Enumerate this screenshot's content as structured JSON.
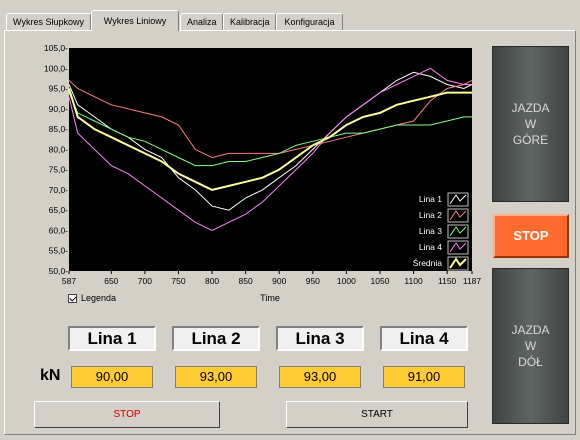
{
  "tabs": [
    "Wykres Słupkowy",
    "Wykres Liniowy",
    "Analiza",
    "Kalibracja",
    "Konfiguracja"
  ],
  "chart_data": {
    "type": "line",
    "xlabel": "Time",
    "ylim": [
      50,
      105
    ],
    "xlim": [
      587,
      1187
    ],
    "y_ticks": [
      "50,0-",
      "55,0-",
      "60,0-",
      "65,0-",
      "70,0-",
      "75,0-",
      "80,0-",
      "85,0-",
      "90,0-",
      "95,0-",
      "100,0-",
      "105,0-"
    ],
    "x_ticks": [
      "587",
      "650",
      "700",
      "750",
      "800",
      "850",
      "900",
      "950",
      "1000",
      "1050",
      "1100",
      "1150",
      "1187"
    ],
    "x_tick_values": [
      587,
      650,
      700,
      750,
      800,
      850,
      900,
      950,
      1000,
      1050,
      1100,
      1150,
      1187
    ],
    "grid": false,
    "legend_placement": "bottom-right",
    "x": [
      587,
      600,
      625,
      650,
      675,
      700,
      725,
      750,
      775,
      800,
      825,
      850,
      875,
      900,
      925,
      950,
      975,
      1000,
      1025,
      1050,
      1075,
      1100,
      1125,
      1150,
      1175,
      1187
    ],
    "series": [
      {
        "name": "Lina 1",
        "color": "#ffffff",
        "values": [
          96,
          91,
          88,
          85,
          83,
          80,
          78,
          73,
          70,
          66,
          65,
          68,
          70,
          73,
          76,
          80,
          84,
          88,
          91,
          94,
          97,
          99,
          98,
          96,
          95,
          96
        ]
      },
      {
        "name": "Lina 2",
        "color": "#ff8080",
        "values": [
          97,
          95,
          93,
          91,
          90,
          89,
          88,
          86,
          80,
          78,
          79,
          79,
          79,
          79,
          80,
          81,
          82,
          83,
          84,
          85,
          86,
          87,
          92,
          95,
          96,
          97
        ]
      },
      {
        "name": "Lina 3",
        "color": "#80ff80",
        "values": [
          94,
          89,
          87,
          85,
          83,
          82,
          80,
          78,
          76,
          76,
          77,
          77,
          78,
          79,
          81,
          82,
          83,
          84,
          84,
          85,
          86,
          86,
          86,
          87,
          88,
          88
        ]
      },
      {
        "name": "Lina 4",
        "color": "#ff80ff",
        "values": [
          93,
          84,
          80,
          76,
          74,
          71,
          68,
          65,
          62,
          60,
          62,
          64,
          67,
          71,
          75,
          79,
          84,
          88,
          91,
          94,
          96,
          98,
          100,
          97,
          96,
          96
        ]
      },
      {
        "name": "Średnia",
        "color": "#ffff99",
        "values": [
          95,
          88,
          85,
          83,
          81,
          79,
          77,
          74,
          72,
          70,
          71,
          72,
          73,
          75,
          78,
          81,
          83,
          86,
          88,
          89,
          91,
          92,
          93,
          94,
          94,
          94
        ]
      }
    ]
  },
  "legend_checkbox": {
    "label": "Legenda",
    "checked": true
  },
  "linas": [
    {
      "label": "Lina 1",
      "value": "90,00"
    },
    {
      "label": "Lina 2",
      "value": "93,00"
    },
    {
      "label": "Lina 3",
      "value": "93,00"
    },
    {
      "label": "Lina 4",
      "value": "91,00"
    }
  ],
  "units_label": "kN",
  "buttons": {
    "stop": "STOP",
    "start": "START"
  },
  "side_buttons": {
    "up": "JAZDA\nW\nGÓRE",
    "stop": "STOP",
    "down": "JAZDA\nW\nDÓŁ"
  },
  "colors": {
    "stop_text": "#cc0000",
    "value_bg": "#ffcc33",
    "stop_side": "#ff6a2e"
  }
}
